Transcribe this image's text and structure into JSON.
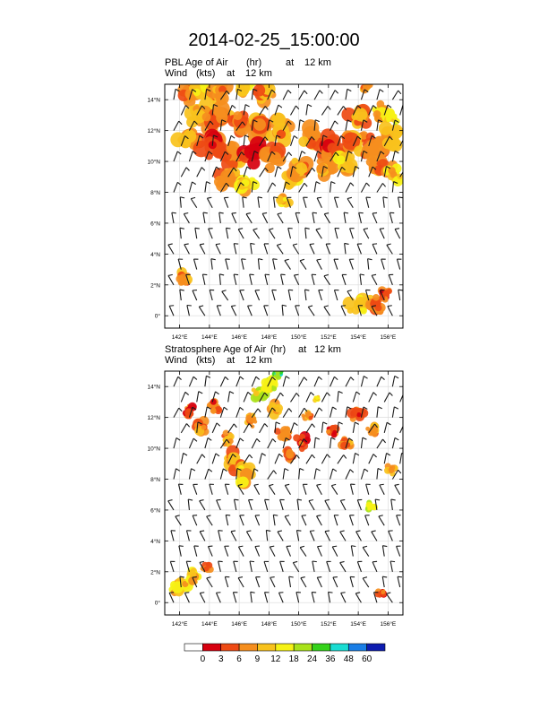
{
  "title": "2014-02-25_15:00:00",
  "panels": [
    {
      "id": "pbl",
      "field_label": "PBL Age of Air",
      "field_units": "(hr)",
      "level_prefix": "at",
      "level": "12 km",
      "wind_label": "Wind",
      "wind_units": "(kts)"
    },
    {
      "id": "strat",
      "field_label": "Stratosphere Age of Air",
      "field_units": "(hr)",
      "level_prefix": "at",
      "level": "12 km",
      "wind_label": "Wind",
      "wind_units": "(kts)"
    }
  ],
  "chart_data": [
    {
      "type": "heatmap",
      "title": "PBL Age of Air (hr) at 12 km",
      "subtitle": "Wind (kts) at 12 km",
      "xlabel": "",
      "ylabel": "",
      "xlim": [
        141.0,
        157.0
      ],
      "ylim": [
        -0.8,
        15.0
      ],
      "x_ticks": [
        142,
        144,
        146,
        148,
        150,
        152,
        154,
        156
      ],
      "x_tick_labels": [
        "142°E",
        "144°E",
        "146°E",
        "148°E",
        "150°E",
        "152°E",
        "154°E",
        "156°E"
      ],
      "y_ticks": [
        0,
        2,
        4,
        6,
        8,
        10,
        12,
        14
      ],
      "y_tick_labels": [
        "0°",
        "2°N",
        "4°N",
        "6°N",
        "8°N",
        "10°N",
        "12°N",
        "14°N"
      ],
      "grid": true,
      "blobs": [
        {
          "lon": 142.8,
          "lat": 14.4,
          "r": 0.8,
          "cat": 3
        },
        {
          "lon": 143.6,
          "lat": 14.7,
          "r": 0.9,
          "cat": 4
        },
        {
          "lon": 144.8,
          "lat": 14.6,
          "r": 0.9,
          "cat": 3
        },
        {
          "lon": 146.4,
          "lat": 14.8,
          "r": 0.8,
          "cat": 4
        },
        {
          "lon": 147.8,
          "lat": 14.6,
          "r": 0.9,
          "cat": 3
        },
        {
          "lon": 143.2,
          "lat": 13.2,
          "r": 1.0,
          "cat": 4
        },
        {
          "lon": 144.6,
          "lat": 12.8,
          "r": 1.1,
          "cat": 3
        },
        {
          "lon": 146.0,
          "lat": 12.6,
          "r": 1.0,
          "cat": 2
        },
        {
          "lon": 147.4,
          "lat": 12.4,
          "r": 1.1,
          "cat": 3
        },
        {
          "lon": 148.8,
          "lat": 12.0,
          "r": 1.0,
          "cat": 3
        },
        {
          "lon": 142.6,
          "lat": 11.4,
          "r": 0.9,
          "cat": 3
        },
        {
          "lon": 144.2,
          "lat": 11.0,
          "r": 1.0,
          "cat": 2
        },
        {
          "lon": 145.6,
          "lat": 10.4,
          "r": 1.0,
          "cat": 3
        },
        {
          "lon": 147.0,
          "lat": 10.6,
          "r": 1.0,
          "cat": 2
        },
        {
          "lon": 148.4,
          "lat": 10.2,
          "r": 1.0,
          "cat": 3
        },
        {
          "lon": 145.2,
          "lat": 9.0,
          "r": 0.9,
          "cat": 3
        },
        {
          "lon": 146.4,
          "lat": 8.6,
          "r": 0.8,
          "cat": 4
        },
        {
          "lon": 149.6,
          "lat": 8.8,
          "r": 0.7,
          "cat": 4
        },
        {
          "lon": 150.2,
          "lat": 9.6,
          "r": 0.9,
          "cat": 3
        },
        {
          "lon": 149.0,
          "lat": 7.4,
          "r": 0.5,
          "cat": 4
        },
        {
          "lon": 150.8,
          "lat": 11.4,
          "r": 1.0,
          "cat": 3
        },
        {
          "lon": 152.2,
          "lat": 11.0,
          "r": 1.1,
          "cat": 2
        },
        {
          "lon": 153.6,
          "lat": 11.4,
          "r": 1.1,
          "cat": 3
        },
        {
          "lon": 155.0,
          "lat": 11.0,
          "r": 1.0,
          "cat": 3
        },
        {
          "lon": 156.2,
          "lat": 11.6,
          "r": 0.9,
          "cat": 4
        },
        {
          "lon": 151.8,
          "lat": 9.6,
          "r": 0.8,
          "cat": 3
        },
        {
          "lon": 153.2,
          "lat": 9.8,
          "r": 0.9,
          "cat": 4
        },
        {
          "lon": 155.2,
          "lat": 9.6,
          "r": 0.8,
          "cat": 3
        },
        {
          "lon": 156.4,
          "lat": 9.2,
          "r": 0.7,
          "cat": 4
        },
        {
          "lon": 154.0,
          "lat": 12.8,
          "r": 0.9,
          "cat": 3
        },
        {
          "lon": 155.6,
          "lat": 13.2,
          "r": 0.7,
          "cat": 4
        },
        {
          "lon": 156.2,
          "lat": 12.8,
          "r": 0.6,
          "cat": 5
        },
        {
          "lon": 154.6,
          "lat": 14.8,
          "r": 0.4,
          "cat": 3
        },
        {
          "lon": 142.2,
          "lat": 2.4,
          "r": 0.6,
          "cat": 3
        },
        {
          "lon": 154.0,
          "lat": 0.6,
          "r": 0.8,
          "cat": 4
        },
        {
          "lon": 155.2,
          "lat": 0.8,
          "r": 0.8,
          "cat": 3
        },
        {
          "lon": 155.8,
          "lat": 1.4,
          "r": 0.5,
          "cat": 2
        }
      ]
    },
    {
      "type": "heatmap",
      "title": "Stratosphere Age of Air (hr) at 12 km",
      "subtitle": "Wind (kts) at 12 km",
      "xlabel": "",
      "ylabel": "",
      "xlim": [
        141.0,
        157.0
      ],
      "ylim": [
        -0.8,
        15.0
      ],
      "x_ticks": [
        142,
        144,
        146,
        148,
        150,
        152,
        154,
        156
      ],
      "x_tick_labels": [
        "142°E",
        "144°E",
        "146°E",
        "148°E",
        "150°E",
        "152°E",
        "154°E",
        "156°E"
      ],
      "y_ticks": [
        0,
        2,
        4,
        6,
        8,
        10,
        12,
        14
      ],
      "y_tick_labels": [
        "0°",
        "2°N",
        "4°N",
        "6°N",
        "8°N",
        "10°N",
        "12°N",
        "14°N"
      ],
      "grid": true,
      "blobs": [
        {
          "lon": 142.6,
          "lat": 12.4,
          "r": 0.5,
          "cat": 2
        },
        {
          "lon": 143.4,
          "lat": 11.4,
          "r": 0.6,
          "cat": 3
        },
        {
          "lon": 144.4,
          "lat": 12.8,
          "r": 0.5,
          "cat": 2
        },
        {
          "lon": 145.2,
          "lat": 10.6,
          "r": 0.5,
          "cat": 3
        },
        {
          "lon": 145.6,
          "lat": 9.2,
          "r": 0.8,
          "cat": 3
        },
        {
          "lon": 146.4,
          "lat": 8.4,
          "r": 0.8,
          "cat": 4
        },
        {
          "lon": 146.8,
          "lat": 11.8,
          "r": 0.5,
          "cat": 3
        },
        {
          "lon": 147.4,
          "lat": 13.6,
          "r": 0.6,
          "cat": 5
        },
        {
          "lon": 148.0,
          "lat": 14.2,
          "r": 0.6,
          "cat": 5
        },
        {
          "lon": 148.6,
          "lat": 14.8,
          "r": 0.4,
          "cat": 7
        },
        {
          "lon": 148.4,
          "lat": 12.6,
          "r": 0.6,
          "cat": 4
        },
        {
          "lon": 149.0,
          "lat": 11.0,
          "r": 0.6,
          "cat": 3
        },
        {
          "lon": 149.4,
          "lat": 9.6,
          "r": 0.5,
          "cat": 2
        },
        {
          "lon": 150.2,
          "lat": 10.4,
          "r": 0.6,
          "cat": 2
        },
        {
          "lon": 150.6,
          "lat": 12.2,
          "r": 0.4,
          "cat": 3
        },
        {
          "lon": 151.2,
          "lat": 13.2,
          "r": 0.3,
          "cat": 5
        },
        {
          "lon": 152.2,
          "lat": 11.2,
          "r": 0.5,
          "cat": 2
        },
        {
          "lon": 153.2,
          "lat": 10.4,
          "r": 0.5,
          "cat": 3
        },
        {
          "lon": 154.0,
          "lat": 12.2,
          "r": 0.6,
          "cat": 2
        },
        {
          "lon": 155.0,
          "lat": 11.2,
          "r": 0.5,
          "cat": 3
        },
        {
          "lon": 156.2,
          "lat": 8.6,
          "r": 0.4,
          "cat": 3
        },
        {
          "lon": 154.8,
          "lat": 6.2,
          "r": 0.4,
          "cat": 5
        },
        {
          "lon": 142.0,
          "lat": 1.0,
          "r": 0.7,
          "cat": 4
        },
        {
          "lon": 143.0,
          "lat": 1.6,
          "r": 0.6,
          "cat": 4
        },
        {
          "lon": 143.8,
          "lat": 2.2,
          "r": 0.4,
          "cat": 3
        },
        {
          "lon": 155.6,
          "lat": 0.6,
          "r": 0.4,
          "cat": 2
        }
      ]
    }
  ],
  "colorbar": {
    "tick_labels": [
      "0",
      "3",
      "6",
      "9",
      "12",
      "18",
      "24",
      "36",
      "48",
      "60"
    ],
    "colors": [
      "#ffffff",
      "#d7000f",
      "#ee4a14",
      "#f58e1e",
      "#f8c21c",
      "#f6f215",
      "#a8e21a",
      "#34d21a",
      "#1adcd2",
      "#1a7ee6",
      "#0d1cb0"
    ]
  },
  "wind_barb_color": "#1a1a1a",
  "grid_color": "#d8d8d8"
}
